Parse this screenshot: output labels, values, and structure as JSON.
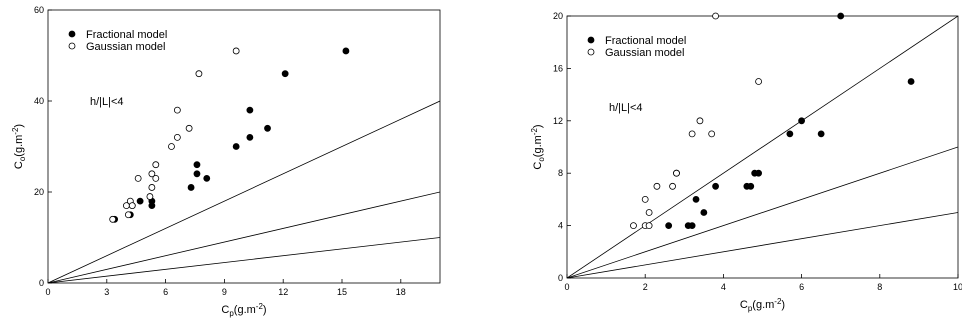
{
  "chart_data": [
    {
      "type": "scatter",
      "xlabel_parts": [
        "C",
        "p",
        "(g.m",
        "-2",
        ")"
      ],
      "ylabel_parts": [
        "C",
        "o",
        "(g.m",
        "-2",
        ")"
      ],
      "annotation": "h/|L|<4",
      "xlim": [
        0,
        20
      ],
      "xticks": [
        0,
        3,
        6,
        9,
        12,
        15,
        18
      ],
      "ylim": [
        0,
        60
      ],
      "yticks": [
        0,
        20,
        40,
        60
      ],
      "legend": "upper left",
      "reference_lines": [
        {
          "x": [
            0,
            20
          ],
          "y": [
            0,
            40
          ]
        },
        {
          "x": [
            0,
            20
          ],
          "y": [
            0,
            20
          ]
        },
        {
          "x": [
            0,
            20
          ],
          "y": [
            0,
            10
          ]
        }
      ],
      "series": [
        {
          "name": "Fractional model",
          "color": "#000000",
          "filled": true,
          "x": [
            15.2,
            12.1,
            10.3,
            10.3,
            11.2,
            9.6,
            7.6,
            7.6,
            8.1,
            7.3,
            5.3,
            5.3,
            4.7,
            4.3,
            4.2,
            3.4
          ],
          "values": [
            51,
            46,
            38,
            32,
            34,
            30,
            26,
            24,
            23,
            21,
            18,
            17,
            18,
            17,
            15,
            14
          ]
        },
        {
          "name": "Gaussian model",
          "color": "#000000",
          "filled": false,
          "x": [
            9.6,
            7.7,
            6.6,
            7.2,
            6.6,
            6.3,
            5.5,
            5.3,
            5.5,
            4.6,
            5.3,
            5.2,
            4.2,
            4.0,
            4.3,
            4.1,
            3.3
          ],
          "values": [
            51,
            46,
            38,
            34,
            32,
            30,
            26,
            24,
            23,
            23,
            21,
            19,
            18,
            17,
            17,
            15,
            14
          ]
        }
      ]
    },
    {
      "type": "scatter",
      "xlabel_parts": [
        "C",
        "p",
        "(g.m",
        "-2",
        ")"
      ],
      "ylabel_parts": [
        "C",
        "o",
        "(g.m",
        "-2",
        ")"
      ],
      "annotation": "h/|L|<4",
      "xlim": [
        0,
        10
      ],
      "xticks": [
        0,
        2,
        4,
        6,
        8,
        10
      ],
      "ylim": [
        0,
        20
      ],
      "yticks": [
        0,
        4,
        8,
        12,
        16,
        20
      ],
      "legend": "upper left",
      "reference_lines": [
        {
          "x": [
            0,
            10
          ],
          "y": [
            0,
            20
          ]
        },
        {
          "x": [
            0,
            10
          ],
          "y": [
            0,
            10
          ]
        },
        {
          "x": [
            0,
            10
          ],
          "y": [
            0,
            5
          ]
        }
      ],
      "series": [
        {
          "name": "Fractional model",
          "color": "#000000",
          "filled": true,
          "x": [
            7.0,
            8.8,
            6.0,
            5.7,
            6.5,
            4.9,
            4.8,
            4.6,
            4.7,
            3.8,
            3.3,
            3.5,
            3.1,
            3.2,
            2.6
          ],
          "values": [
            20,
            15,
            12,
            11,
            11,
            8,
            8,
            7,
            7,
            7,
            6,
            5,
            4,
            4,
            4
          ]
        },
        {
          "name": "Gaussian model",
          "color": "#000000",
          "filled": false,
          "x": [
            3.8,
            4.9,
            3.4,
            3.2,
            3.7,
            2.8,
            2.8,
            2.7,
            2.3,
            2.0,
            2.1,
            1.7,
            2.0,
            2.1
          ],
          "values": [
            20,
            15,
            12,
            11,
            11,
            8,
            8,
            7,
            7,
            6,
            5,
            4,
            4,
            4
          ]
        }
      ]
    }
  ]
}
